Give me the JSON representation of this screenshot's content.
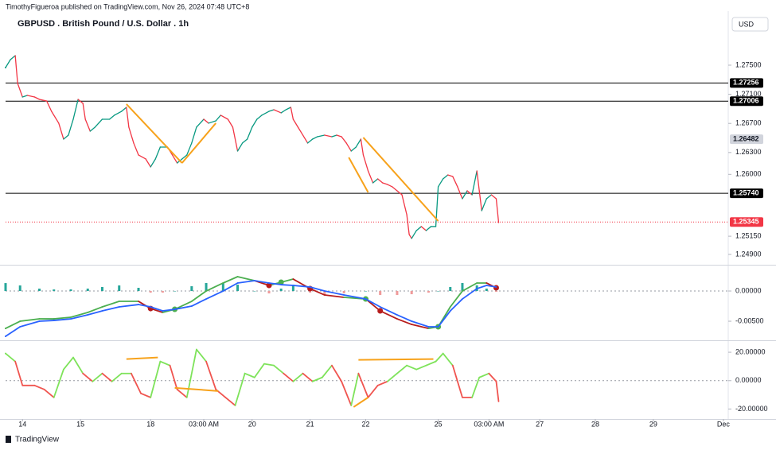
{
  "header": {
    "publisher": "TimothyFigueroa published on TradingView.com, Nov 26, 2024 07:48 UTC+8",
    "title": "GBPUSD . British Pound / U.S. Dollar . 1h",
    "currency": "USD",
    "brand": "TradingView"
  },
  "chart_data": [
    {
      "type": "line",
      "xlim": [
        -7,
        292
      ],
      "ylim": [
        1.24758,
        1.28177
      ],
      "yticks": [
        {
          "value": 1.275,
          "label": "1.27500"
        },
        {
          "value": 1.271,
          "label": "1.27100"
        },
        {
          "value": 1.267,
          "label": "1.26700"
        },
        {
          "value": 1.263,
          "label": "1.26300"
        },
        {
          "value": 1.26,
          "label": "1.26000"
        },
        {
          "value": 1.2515,
          "label": "1.25150"
        },
        {
          "value": 1.249,
          "label": "1.24900"
        }
      ],
      "levels": [
        {
          "value": 1.27256,
          "label": "1.27256",
          "color": "#000000",
          "label_color": "#ffffff",
          "line": "solid"
        },
        {
          "value": 1.27006,
          "label": "1.27006",
          "color": "#000000",
          "label_color": "#ffffff",
          "line": "solid"
        },
        {
          "value": 1.26482,
          "label": "1.26482",
          "color": "#d1d4dc",
          "label_color": "#131722",
          "line": "none"
        },
        {
          "value": 1.2574,
          "label": "1.25740",
          "color": "#000000",
          "label_color": "#ffffff",
          "line": "solid"
        },
        {
          "value": 1.25345,
          "label": "1.25345",
          "color": "#f23645",
          "label_color": "#ffffff",
          "line": "dotted"
        }
      ],
      "trendline_color": "#f7a21b",
      "trendlines": [
        {
          "x": [
            43,
            66
          ],
          "y": [
            1.26965,
            1.26156
          ]
        },
        {
          "x": [
            66,
            80
          ],
          "y": [
            1.26156,
            1.26703
          ]
        },
        {
          "x": [
            135,
            143
          ],
          "y": [
            1.26233,
            1.25753
          ]
        },
        {
          "x": [
            141,
            172
          ],
          "y": [
            1.26506,
            1.25359
          ]
        }
      ],
      "x": [
        -7,
        -5,
        -3,
        -2,
        0,
        2,
        5,
        7,
        10,
        12,
        15,
        17,
        19,
        21,
        23,
        25,
        26,
        28,
        30,
        33,
        36,
        38,
        41,
        43,
        44,
        46,
        48,
        51,
        53,
        55,
        57,
        60,
        62,
        64,
        66,
        68,
        70,
        72,
        75,
        77,
        80,
        82,
        85,
        87,
        89,
        91,
        93,
        95,
        97,
        99,
        102,
        104,
        107,
        109,
        111,
        112,
        114,
        116,
        118,
        120,
        122,
        125,
        128,
        130,
        132,
        134,
        136,
        138,
        140,
        141,
        143,
        145,
        147,
        149,
        151,
        153,
        155,
        157,
        159,
        160,
        161,
        163,
        165,
        167,
        169,
        171,
        172,
        174,
        176,
        178,
        180,
        182,
        184,
        186,
        188,
        189,
        190,
        192,
        194,
        196,
        197
      ],
      "series": [
        {
          "color_by": "direction",
          "up_color": "#089981",
          "down_color": "#f23645",
          "values": [
            1.27467,
            1.27576,
            1.27631,
            1.27249,
            1.27063,
            1.27085,
            1.27063,
            1.2703,
            1.27008,
            1.26866,
            1.26703,
            1.26484,
            1.26539,
            1.26757,
            1.2703,
            1.26976,
            1.26757,
            1.26593,
            1.26648,
            1.26757,
            1.26757,
            1.26812,
            1.26866,
            1.26921,
            1.26648,
            1.2643,
            1.26266,
            1.26211,
            1.26102,
            1.26211,
            1.26375,
            1.26375,
            1.26266,
            1.26156,
            1.26211,
            1.26266,
            1.2643,
            1.26648,
            1.26757,
            1.26703,
            1.26735,
            1.26812,
            1.26757,
            1.26648,
            1.2632,
            1.2643,
            1.26484,
            1.26648,
            1.26757,
            1.26812,
            1.26866,
            1.26888,
            1.26845,
            1.26888,
            1.26921,
            1.26757,
            1.26648,
            1.26539,
            1.2643,
            1.26484,
            1.26517,
            1.26539,
            1.26517,
            1.26539,
            1.26517,
            1.2643,
            1.2632,
            1.26375,
            1.26484,
            1.26266,
            1.26047,
            1.25883,
            1.25938,
            1.25883,
            1.25861,
            1.25829,
            1.25774,
            1.25719,
            1.25446,
            1.25173,
            1.25119,
            1.25228,
            1.25283,
            1.25228,
            1.25283,
            1.25283,
            1.25829,
            1.25938,
            1.25992,
            1.25971,
            1.25829,
            1.25665,
            1.25774,
            1.25719,
            1.26047,
            1.25774,
            1.25501,
            1.25665,
            1.25719,
            1.25665,
            1.25337
          ]
        }
      ]
    },
    {
      "type": "line",
      "xlim": [
        -7,
        292
      ],
      "ylim": [
        -0.00789,
        0.00395
      ],
      "yticks": [
        {
          "value": 0,
          "label": "0.00000"
        },
        {
          "value": -0.005,
          "label": "-0.00500"
        }
      ],
      "zero_line": true,
      "x": [
        -7,
        -1,
        7,
        13,
        20,
        27,
        33,
        40,
        48,
        53,
        58,
        63,
        70,
        76,
        83,
        89,
        96,
        102,
        107,
        112,
        119,
        125,
        133,
        142,
        148,
        155,
        161,
        168,
        172,
        177,
        182,
        188,
        192,
        196
      ],
      "series": [
        {
          "color_by": "signal",
          "up_color": "#4caf50",
          "down_color": "#b71c1c",
          "cross_dots": true,
          "values": [
            -0.00619,
            -0.005,
            -0.00461,
            -0.00461,
            -0.00434,
            -0.00355,
            -0.00263,
            -0.00171,
            -0.00171,
            -0.0029,
            -0.00355,
            -0.00303,
            -0.00171,
            0,
            0.00132,
            0.00237,
            0.00171,
            0.00092,
            0.00145,
            0.00197,
            0.00039,
            -0.00066,
            -0.00105,
            -0.00132,
            -0.00329,
            -0.00461,
            -0.00553,
            -0.00619,
            -0.00592,
            -0.00263,
            0,
            0.00132,
            0.00132,
            0.00053
          ]
        },
        {
          "color_by": "none",
          "up_color": "#2962ff",
          "values": [
            -0.0075,
            -0.00592,
            -0.005,
            -0.00487,
            -0.00461,
            -0.00395,
            -0.00329,
            -0.00263,
            -0.00224,
            -0.00263,
            -0.00329,
            -0.00303,
            -0.0025,
            -0.00132,
            0,
            0.00132,
            0.00171,
            0.00132,
            0.00105,
            0.00092,
            0.00066,
            0,
            -0.00066,
            -0.00132,
            -0.00263,
            -0.00395,
            -0.005,
            -0.00592,
            -0.00592,
            -0.00329,
            -0.00132,
            0.00039,
            0.00092,
            0.00066
          ]
        }
      ],
      "histogram": {
        "up_color": "#26a69a",
        "down_color": "#ef9a9a",
        "values": [
          0.00131,
          0.00092,
          0.00039,
          0.00026,
          0.00027,
          0.0004,
          0.00066,
          0.00092,
          0.00053,
          -0.00027,
          -0.00026,
          0,
          0.00079,
          0.00132,
          0.00132,
          0.00105,
          0,
          -0.0004,
          0.0004,
          0.00105,
          -0.00027,
          -0.00066,
          -0.00039,
          0,
          -0.00066,
          -0.00066,
          -0.00053,
          -0.00027,
          0,
          0.00066,
          0.00132,
          0.00093,
          0.0004,
          -0.00013
        ]
      }
    },
    {
      "type": "line",
      "xlim": [
        -7,
        292
      ],
      "ylim": [
        -25.9,
        26.76
      ],
      "yticks": [
        {
          "value": 20,
          "label": "20.00000"
        },
        {
          "value": 0,
          "label": "0.00000"
        },
        {
          "value": -20,
          "label": "-20.00000"
        }
      ],
      "zero_line": true,
      "xticks": [
        {
          "value": 0,
          "label": "14"
        },
        {
          "value": 24,
          "label": "15"
        },
        {
          "value": 53,
          "label": "18"
        },
        {
          "value": 75,
          "label": "03:00 AM"
        },
        {
          "value": 95,
          "label": "20"
        },
        {
          "value": 119,
          "label": "21"
        },
        {
          "value": 142,
          "label": "22"
        },
        {
          "value": 172,
          "label": "25"
        },
        {
          "value": 193,
          "label": "03:00 AM"
        },
        {
          "value": 214,
          "label": "27"
        },
        {
          "value": 237,
          "label": "28"
        },
        {
          "value": 261,
          "label": "29"
        },
        {
          "value": 290,
          "label": "Dec"
        }
      ],
      "trendline_color": "#f7a21b",
      "trendlines": [
        {
          "x": [
            43,
            56
          ],
          "y": [
            15.21,
            16.34
          ]
        },
        {
          "x": [
            63,
            81
          ],
          "y": [
            -5.07,
            -7.32
          ]
        },
        {
          "x": [
            137,
            143
          ],
          "y": [
            -18.59,
            -11.83
          ]
        },
        {
          "x": [
            139,
            170
          ],
          "y": [
            14.65,
            15.21
          ]
        }
      ],
      "x": [
        -7,
        -3,
        0,
        5,
        9,
        13,
        17,
        21,
        25,
        29,
        33,
        37,
        41,
        45,
        49,
        53,
        57,
        61,
        64,
        68,
        72,
        76,
        80,
        84,
        88,
        92,
        96,
        100,
        104,
        108,
        112,
        116,
        120,
        124,
        128,
        132,
        136,
        139,
        143,
        147,
        151,
        155,
        159,
        163,
        167,
        171,
        174,
        178,
        182,
        186,
        189,
        193,
        196,
        197
      ],
      "series": [
        {
          "color_by": "sign",
          "up_color": "#7ee35a",
          "down_color": "#f0544f",
          "values": [
            19.15,
            13.52,
            -3.38,
            -3.38,
            -6.2,
            -11.83,
            7.89,
            16.34,
            5.07,
            -0.56,
            5.07,
            -0.56,
            5.07,
            5.07,
            -9.01,
            -11.83,
            13.52,
            10.7,
            -6.2,
            -11.83,
            21.97,
            13.52,
            -6.2,
            -11.83,
            -17.46,
            5.07,
            2.25,
            11.83,
            10.7,
            5.07,
            -0.56,
            5.07,
            -0.56,
            2.25,
            10.7,
            -0.56,
            -17.46,
            5.07,
            -11.83,
            -3.38,
            -0.56,
            5.07,
            10.7,
            7.89,
            10.7,
            13.52,
            19.15,
            10.7,
            -11.83,
            -11.83,
            2.25,
            5.07,
            -0.56,
            -14.65
          ]
        }
      ]
    }
  ]
}
